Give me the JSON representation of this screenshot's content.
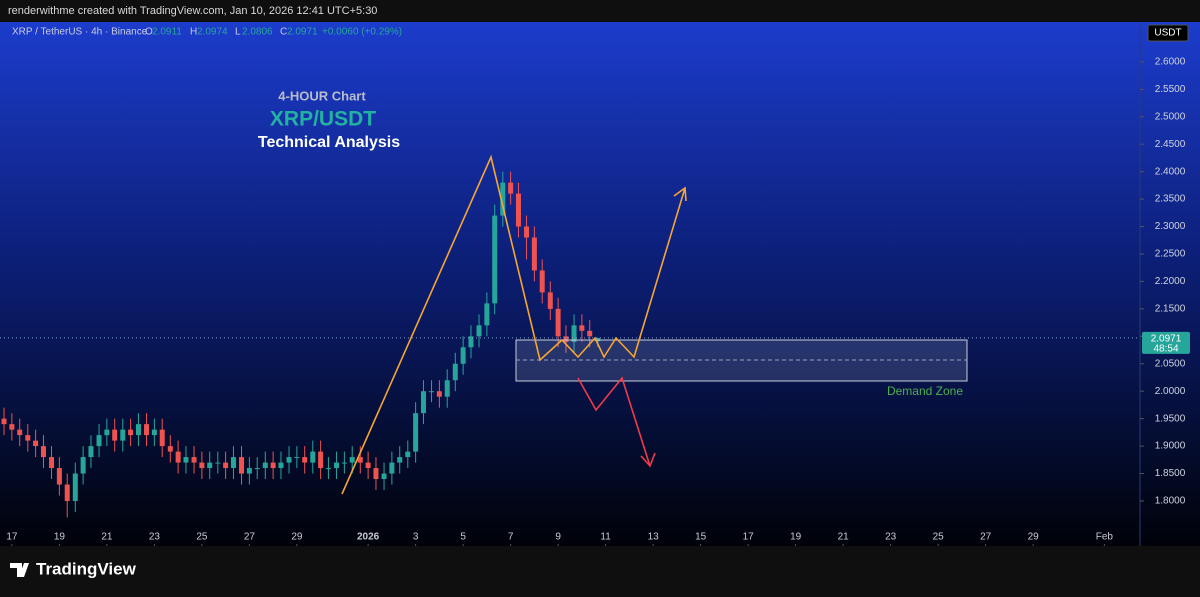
{
  "chart_data": {
    "type": "candlestick",
    "byline": "renderwithme created with TradingView.com, Jan 10, 2026 12:41 UTC+5:30",
    "symbol": "XRP / TetherUS · 4h · Binance",
    "ohlc_labels": [
      "O",
      "H",
      "L",
      "C"
    ],
    "change": "+0.0060 (+0.29%)",
    "currency": "USDT",
    "countdown": "48:54",
    "annotations": [
      "4-HOUR Chart",
      "XRP/USDT",
      "Technical Analysis",
      "Demand Zone"
    ],
    "brand": "TradingView",
    "up_color": "#26a69a",
    "down_color": "#ef5350",
    "x": [
      16.67,
      17,
      17.33,
      17.67,
      18,
      18.33,
      18.67,
      19,
      19.33,
      19.67,
      20,
      20.33,
      20.67,
      21,
      21.33,
      21.67,
      22,
      22.33,
      22.67,
      23,
      23.33,
      23.67,
      24,
      24.33,
      24.67,
      25,
      25.33,
      25.67,
      26,
      26.33,
      26.67,
      27,
      27.33,
      27.67,
      28,
      28.33,
      28.67,
      29,
      29.33,
      29.67,
      30,
      30.33,
      30.67,
      31,
      31.33,
      31.67,
      32,
      32.33,
      32.67,
      33,
      33.33,
      33.67,
      34,
      34.33,
      34.67,
      35,
      35.33,
      35.67,
      36,
      36.33,
      36.67,
      37,
      37.33,
      37.67,
      38,
      38.33,
      38.67,
      39,
      39.33,
      39.67,
      40,
      40.33,
      40.67,
      41,
      41.33,
      41.67
    ],
    "open": [
      1.95,
      1.94,
      1.93,
      1.92,
      1.91,
      1.9,
      1.88,
      1.86,
      1.83,
      1.8,
      1.85,
      1.88,
      1.9,
      1.92,
      1.93,
      1.91,
      1.93,
      1.92,
      1.94,
      1.92,
      1.93,
      1.9,
      1.89,
      1.87,
      1.88,
      1.87,
      1.86,
      1.87,
      1.87,
      1.86,
      1.88,
      1.85,
      1.86,
      1.86,
      1.87,
      1.86,
      1.87,
      1.88,
      1.88,
      1.87,
      1.89,
      1.86,
      1.86,
      1.87,
      1.87,
      1.88,
      1.87,
      1.86,
      1.84,
      1.85,
      1.87,
      1.88,
      1.89,
      1.96,
      2.0,
      2.0,
      1.99,
      2.02,
      2.05,
      2.08,
      2.1,
      2.12,
      2.16,
      2.32,
      2.38,
      2.36,
      2.3,
      2.28,
      2.22,
      2.18,
      2.15,
      2.1,
      2.09,
      2.12,
      2.11,
      2.0911
    ],
    "high": [
      1.97,
      1.96,
      1.95,
      1.94,
      1.93,
      1.92,
      1.9,
      1.88,
      1.85,
      1.87,
      1.9,
      1.92,
      1.94,
      1.95,
      1.95,
      1.95,
      1.95,
      1.96,
      1.96,
      1.95,
      1.95,
      1.92,
      1.91,
      1.9,
      1.9,
      1.89,
      1.89,
      1.89,
      1.89,
      1.9,
      1.9,
      1.88,
      1.88,
      1.89,
      1.89,
      1.89,
      1.9,
      1.9,
      1.9,
      1.91,
      1.91,
      1.88,
      1.89,
      1.89,
      1.9,
      1.9,
      1.89,
      1.88,
      1.87,
      1.89,
      1.9,
      1.91,
      1.98,
      2.02,
      2.02,
      2.02,
      2.04,
      2.07,
      2.1,
      2.12,
      2.14,
      2.18,
      2.34,
      2.4,
      2.4,
      2.38,
      2.32,
      2.3,
      2.24,
      2.2,
      2.17,
      2.12,
      2.14,
      2.14,
      2.13,
      2.0974
    ],
    "low": [
      1.92,
      1.91,
      1.9,
      1.89,
      1.88,
      1.86,
      1.84,
      1.81,
      1.77,
      1.78,
      1.83,
      1.86,
      1.88,
      1.9,
      1.89,
      1.89,
      1.9,
      1.9,
      1.9,
      1.9,
      1.88,
      1.87,
      1.85,
      1.85,
      1.85,
      1.84,
      1.84,
      1.85,
      1.84,
      1.84,
      1.83,
      1.83,
      1.84,
      1.84,
      1.84,
      1.84,
      1.85,
      1.86,
      1.85,
      1.85,
      1.84,
      1.84,
      1.84,
      1.85,
      1.85,
      1.85,
      1.84,
      1.82,
      1.82,
      1.83,
      1.85,
      1.86,
      1.87,
      1.94,
      1.98,
      1.97,
      1.97,
      2.0,
      2.03,
      2.06,
      2.08,
      2.1,
      2.14,
      2.3,
      2.34,
      2.28,
      2.24,
      2.2,
      2.16,
      2.13,
      2.08,
      2.07,
      2.07,
      2.09,
      2.08,
      2.0806
    ],
    "close": [
      1.94,
      1.93,
      1.92,
      1.91,
      1.9,
      1.88,
      1.86,
      1.83,
      1.8,
      1.85,
      1.88,
      1.9,
      1.92,
      1.93,
      1.91,
      1.93,
      1.92,
      1.94,
      1.92,
      1.93,
      1.9,
      1.89,
      1.87,
      1.88,
      1.87,
      1.86,
      1.87,
      1.87,
      1.86,
      1.88,
      1.85,
      1.86,
      1.86,
      1.87,
      1.86,
      1.87,
      1.88,
      1.88,
      1.87,
      1.89,
      1.86,
      1.86,
      1.87,
      1.87,
      1.88,
      1.87,
      1.86,
      1.84,
      1.85,
      1.87,
      1.88,
      1.89,
      1.96,
      2.0,
      2.0,
      1.99,
      2.02,
      2.05,
      2.08,
      2.1,
      2.12,
      2.16,
      2.32,
      2.38,
      2.36,
      2.3,
      2.28,
      2.22,
      2.18,
      2.15,
      2.1,
      2.09,
      2.12,
      2.11,
      2.1,
      2.0971
    ],
    "xlim": [
      16.5,
      64.5
    ],
    "xticks": [
      17,
      19,
      21,
      23,
      25,
      27,
      29,
      {
        "value": 32,
        "label": "2026"
      },
      {
        "value": 34,
        "label": "3"
      },
      {
        "value": 36,
        "label": "5"
      },
      {
        "value": 38,
        "label": "7"
      },
      {
        "value": 40,
        "label": "9"
      },
      {
        "value": 42,
        "label": "11"
      },
      {
        "value": 44,
        "label": "13"
      },
      {
        "value": 46,
        "label": "15"
      },
      {
        "value": 48,
        "label": "17"
      },
      {
        "value": 50,
        "label": "19"
      },
      {
        "value": 52,
        "label": "21"
      },
      {
        "value": 54,
        "label": "23"
      },
      {
        "value": 56,
        "label": "25"
      },
      {
        "value": 58,
        "label": "27"
      },
      {
        "value": 60,
        "label": "29"
      },
      {
        "value": 63,
        "label": "Feb"
      }
    ],
    "ylim": [
      1.718,
      2.669
    ],
    "yticks": [
      {
        "value": 1.8,
        "label": "1.8000"
      },
      {
        "value": 1.85,
        "label": "1.8500"
      },
      {
        "value": 1.9,
        "label": "1.9000"
      },
      {
        "value": 1.95,
        "label": "1.9500"
      },
      {
        "value": 2.0,
        "label": "2.0000"
      },
      {
        "value": 2.05,
        "label": "2.0500"
      },
      {
        "value": 2.1,
        "label": "2.1000"
      },
      {
        "value": 2.15,
        "label": "2.1500"
      },
      {
        "value": 2.2,
        "label": "2.2000"
      },
      {
        "value": 2.25,
        "label": "2.2500"
      },
      {
        "value": 2.3,
        "label": "2.3000"
      },
      {
        "value": 2.35,
        "label": "2.3500"
      },
      {
        "value": 2.4,
        "label": "2.4000"
      },
      {
        "value": 2.45,
        "label": "2.4500"
      },
      {
        "value": 2.5,
        "label": "2.5000"
      },
      {
        "value": 2.55,
        "label": "2.5500"
      },
      {
        "value": 2.6,
        "label": "2.6000"
      }
    ]
  }
}
